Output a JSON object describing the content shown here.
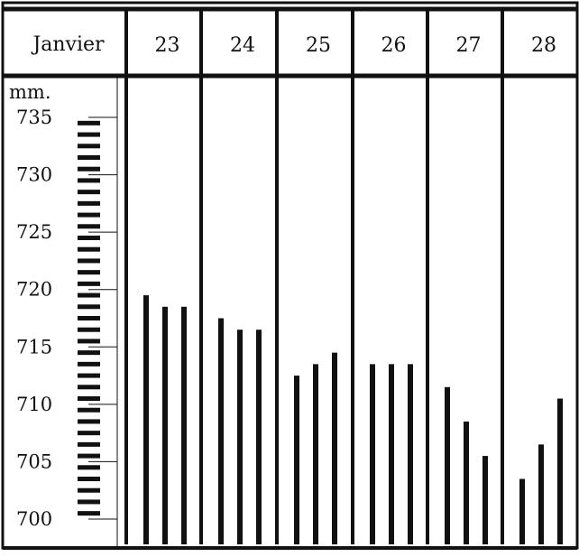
{
  "chart_data": {
    "type": "bar",
    "month_label": "Janvier",
    "unit_label": "mm.",
    "days": [
      "23",
      "24",
      "25",
      "26",
      "27",
      "28"
    ],
    "ylim": [
      698,
      737
    ],
    "yticks": [
      735,
      730,
      725,
      720,
      715,
      710,
      705,
      700
    ],
    "ytick_labels": [
      "735",
      "730",
      "725",
      "720",
      "715",
      "710",
      "705",
      "700"
    ],
    "series": [
      {
        "values": [
          719.5,
          718.5,
          718.5,
          717.5,
          716.5,
          716.5,
          712.5,
          713.5,
          714.5,
          713.5,
          713.5,
          713.5,
          711.5,
          708.5,
          705.5,
          703.5,
          706.5,
          710.5
        ]
      }
    ],
    "grid": false,
    "legend": "none"
  }
}
